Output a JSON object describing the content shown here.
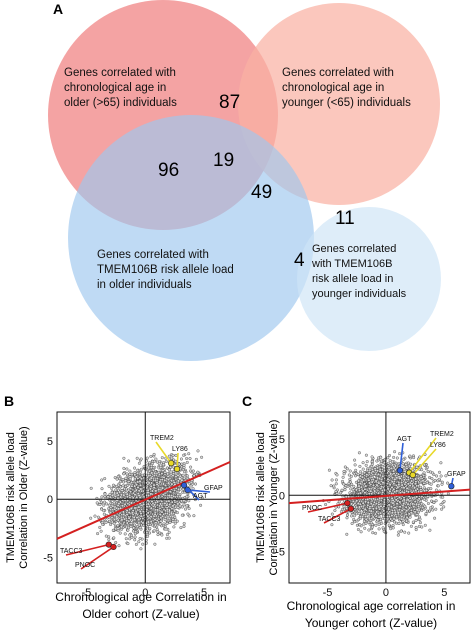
{
  "venn": {
    "panel_label": "A",
    "sets": [
      {
        "label_lines": [
          "Genes correlated with",
          "chronological age in",
          "older (>65)  individuals"
        ],
        "color": "#f08080"
      },
      {
        "label_lines": [
          "Genes correlated with",
          "chronological age in",
          "younger (<65)  individuals"
        ],
        "color": "#f9b1a3"
      },
      {
        "label_lines": [
          "Genes correlated with",
          "TMEM106B risk allele load",
          "in older individuals"
        ],
        "color": "#9ec7ee"
      },
      {
        "label_lines": [
          "Genes correlated",
          "with TMEM106B",
          "risk allele load in",
          "younger individuals"
        ],
        "color": "#cfe4f6"
      }
    ],
    "counts": {
      "older_age_and_younger_age": "87",
      "older_age_and_older_tmem": "96",
      "three_way": "19",
      "younger_age_and_older_tmem": "49",
      "younger_age_and_younger_tmem": "11",
      "older_tmem_and_younger_tmem": "4"
    }
  },
  "chart_data": [
    {
      "panel_label": "B",
      "type": "scatter",
      "xlabel_lines": [
        "Chronological age Correlation in",
        "Older cohort (Z-value)"
      ],
      "ylabel_lines": [
        "TMEM106B risk allele load",
        "Correlation in Older (Z-value)"
      ],
      "xlim": [
        -7.5,
        7.2
      ],
      "ylim": [
        -7.2,
        7.5
      ],
      "xticks": [
        -5,
        0,
        5
      ],
      "yticks": [
        5,
        0,
        -5
      ],
      "xtick_labels": [
        "-5",
        "0",
        "5"
      ],
      "ytick_labels": [
        "5",
        "0",
        "-5"
      ],
      "cloud": {
        "cx": 0.3,
        "cy": 0.1,
        "sx": 1.6,
        "sy": 1.4,
        "rho": 0.35,
        "n": 2600,
        "xmin": -5.2,
        "xmax": 5.0,
        "ymin": -4.3,
        "ymax": 4.2
      },
      "trend_line": {
        "x": [
          -7.5,
          7.2
        ],
        "y": [
          -3.4,
          3.2
        ],
        "color": "#d42020"
      },
      "highlighted_genes": [
        {
          "name": "TREM2",
          "x": 2.2,
          "y": 3.1,
          "color": "#e8d92a"
        },
        {
          "name": "LY86",
          "x": 2.7,
          "y": 2.6,
          "color": "#e8d92a"
        },
        {
          "name": "GFAP",
          "x": 3.6,
          "y": 0.8,
          "color": "#2f5fd8"
        },
        {
          "name": "AGT",
          "x": 3.3,
          "y": 1.2,
          "color": "#2f5fd8"
        },
        {
          "name": "TACC3",
          "x": -3.1,
          "y": -3.9,
          "color": "#d42020"
        },
        {
          "name": "PNOC",
          "x": -2.7,
          "y": -4.1,
          "color": "#d42020"
        }
      ]
    },
    {
      "panel_label": "C",
      "type": "scatter",
      "xlabel_lines": [
        "Chronological age correlation in",
        "Younger cohort (Z-value)"
      ],
      "ylabel_lines": [
        "TMEM106B risk allele load",
        "Correlation in Younger (Z-value)"
      ],
      "xlim": [
        -8.3,
        7.2
      ],
      "ylim": [
        -7.8,
        7.4
      ],
      "xticks": [
        -5,
        0,
        5
      ],
      "yticks": [
        5,
        0,
        -5
      ],
      "xtick_labels": [
        "-5",
        "0",
        "5"
      ],
      "ytick_labels": [
        "5",
        "0",
        "-5"
      ],
      "cloud": {
        "cx": 0.2,
        "cy": 0.2,
        "sx": 1.8,
        "sy": 1.3,
        "rho": 0.08,
        "n": 2600,
        "xmin": -5.6,
        "xmax": 5.4,
        "ymin": -3.8,
        "ymax": 4.0
      },
      "trend_line": {
        "x": [
          -8.3,
          7.2
        ],
        "y": [
          -0.7,
          0.5
        ],
        "color": "#d42020"
      },
      "highlighted_genes": [
        {
          "name": "AGT",
          "x": 1.2,
          "y": 2.2,
          "color": "#2f5fd8"
        },
        {
          "name": "TREM2",
          "x": 2.0,
          "y": 2.0,
          "color": "#e8d92a"
        },
        {
          "name": "LY86",
          "x": 2.3,
          "y": 1.8,
          "color": "#e8d92a"
        },
        {
          "name": "GFAP",
          "x": 5.6,
          "y": 0.8,
          "color": "#2f5fd8"
        },
        {
          "name": "PNOC",
          "x": -3.3,
          "y": -0.7,
          "color": "#d42020"
        },
        {
          "name": "TACC3",
          "x": -3.0,
          "y": -1.2,
          "color": "#d42020"
        }
      ]
    }
  ]
}
